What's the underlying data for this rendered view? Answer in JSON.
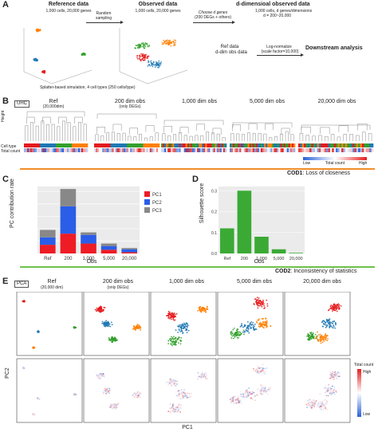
{
  "panelA": {
    "letter": "A",
    "ref_title": "Reference data",
    "ref_sub": "1,000 cells, 20,000 genes",
    "step1": "Random",
    "step1b": "sampling",
    "obs_title": "Observed data",
    "obs_sub": "1,000 cells, 20,000 genes",
    "step2": "Choose d genes",
    "step2b": "(200 DEGs + others)",
    "ddim_title": "d-dimensioal observed data",
    "ddim_sub1": "1,000 cells, d genes/dimensions",
    "ddim_sub2": "d = 200~20,000",
    "refdata1": "Ref data",
    "refdata2": "d-dim obs data",
    "lognorm1": "Log-normalize",
    "lognorm2": "(scale factor=10,000)",
    "downstream": "Downstream analysis",
    "caption": "Splatter-based simulation, 4 cell types (250 cells/type)",
    "colors": [
      "#e41a1c",
      "#1f78b4",
      "#33a02c",
      "#ff7f00"
    ]
  },
  "panelB": {
    "letter": "B",
    "uhc": "UHC",
    "labels": [
      "Ref",
      "200 dim obs",
      "1,000 dim obs",
      "5,000 dim obs",
      "20,000 dim obs"
    ],
    "ref_sub": "(20,000dim)",
    "obs200_sub": "(only DEGs)",
    "height": "Height",
    "cell_type": "Cell type",
    "total_count": "Total count",
    "legend_low": "Low",
    "legend_mid": "Total count",
    "legend_high": "High",
    "cod1_bold": "COD1",
    "cod1_text": ": Loss of closeness"
  },
  "panelC": {
    "letter": "C",
    "ylabel": "PC contribution rate",
    "xlabel": "Obs",
    "categories": [
      "Ref",
      "200",
      "1,000",
      "5,000",
      "20,000"
    ],
    "legend": [
      "PC1",
      "PC2",
      "PC3"
    ]
  },
  "panelD": {
    "letter": "D",
    "ylabel": "Silhouette score",
    "xlabel": "Obs",
    "categories": [
      "Ref",
      "200",
      "1,000",
      "5,000",
      "20,000"
    ]
  },
  "cod2_bold": "COD2",
  "cod2_text": ": Inconsistency of statistics",
  "panelE": {
    "letter": "E",
    "pca": "PCA",
    "labels": [
      "Ref",
      "200 dim obs",
      "1,000 dim obs",
      "5,000 dim obs",
      "20,000 dim obs"
    ],
    "ref_sub": "(20,000 dim)",
    "obs200_sub": "(only DEGs)",
    "xlabel": "PC1",
    "ylabel": "PC2",
    "legend_title": "Total count",
    "legend_high": "High",
    "legend_low": "Low"
  },
  "chart_data": [
    {
      "type": "bar",
      "stacked": true,
      "ylabel": "PC contribution rate",
      "xlabel": "Obs",
      "categories": [
        "Ref",
        "200",
        "1,000",
        "5,000",
        "20,000"
      ],
      "series": [
        {
          "name": "PC1",
          "values": [
            3.5,
            8,
            4,
            1.5,
            0.5
          ]
        },
        {
          "name": "PC2",
          "values": [
            3,
            11,
            3.5,
            1.5,
            1.2
          ]
        },
        {
          "name": "PC3",
          "values": [
            3,
            7,
            1,
            1,
            0.5
          ]
        }
      ],
      "colors": [
        "#ee1c25",
        "#2a5ee8",
        "#888888"
      ],
      "ylim": [
        0,
        27
      ]
    },
    {
      "type": "bar",
      "ylabel": "Silhouette score",
      "xlabel": "Obs",
      "categories": [
        "Ref",
        "200",
        "1,000",
        "5,000",
        "20,000"
      ],
      "values": [
        0.12,
        0.3,
        0.08,
        0.02,
        0.003
      ],
      "yticks": [
        "0.0",
        "0.1",
        "0.2",
        "0.3"
      ],
      "ylim": [
        0,
        0.32
      ],
      "color": "#3aaa35"
    }
  ]
}
